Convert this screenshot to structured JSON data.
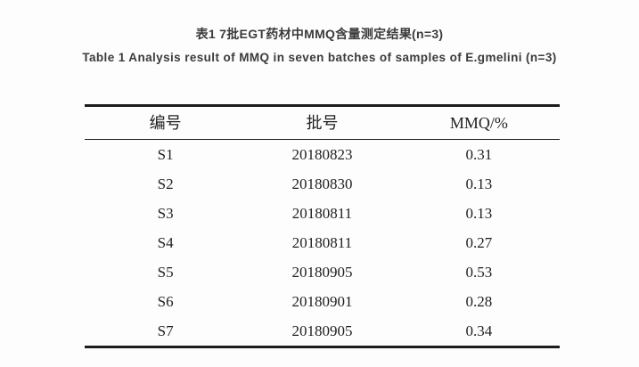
{
  "titles": {
    "chinese": "表1 7批EGT药材中MMQ含量测定结果(n=3)",
    "english": "Table 1 Analysis result of MMQ in seven batches of samples of E.gmelini (n=3)"
  },
  "table": {
    "headers": [
      "编号",
      "批号",
      "MMQ/%"
    ],
    "rows": [
      [
        "S1",
        "20180823",
        "0.31"
      ],
      [
        "S2",
        "20180830",
        "0.13"
      ],
      [
        "S3",
        "20180811",
        "0.13"
      ],
      [
        "S4",
        "20180811",
        "0.27"
      ],
      [
        "S5",
        "20180905",
        "0.53"
      ],
      [
        "S6",
        "20180901",
        "0.28"
      ],
      [
        "S7",
        "20180905",
        "0.34"
      ]
    ]
  },
  "colors": {
    "background": "#fdfdfd",
    "title_text": "#3b3b3b",
    "table_text": "#1f1f1f",
    "rule": "#1c1c1c"
  }
}
